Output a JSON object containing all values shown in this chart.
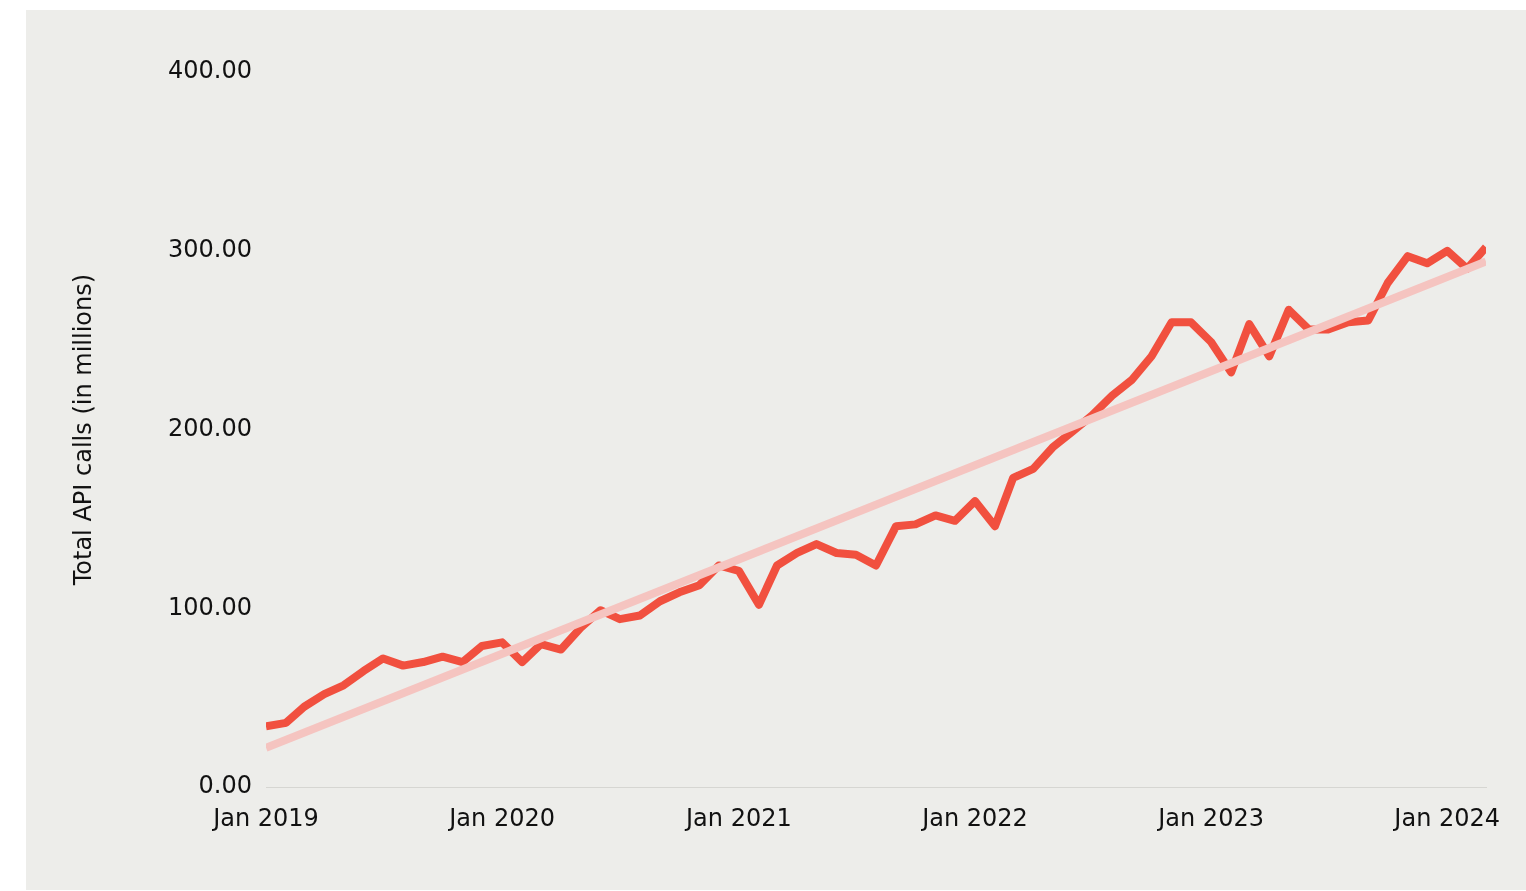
{
  "chart_data": {
    "type": "line",
    "ylabel": "Total API calls (in millions)",
    "x": [
      "2019-01",
      "2019-02",
      "2019-03",
      "2019-04",
      "2019-05",
      "2019-06",
      "2019-07",
      "2019-08",
      "2019-09",
      "2019-10",
      "2019-11",
      "2019-12",
      "2020-01",
      "2020-02",
      "2020-03",
      "2020-04",
      "2020-05",
      "2020-06",
      "2020-07",
      "2020-08",
      "2020-09",
      "2020-10",
      "2020-11",
      "2020-12",
      "2021-01",
      "2021-02",
      "2021-03",
      "2021-04",
      "2021-05",
      "2021-06",
      "2021-07",
      "2021-08",
      "2021-09",
      "2021-10",
      "2021-11",
      "2021-12",
      "2022-01",
      "2022-02",
      "2022-03",
      "2022-04",
      "2022-05",
      "2022-06",
      "2022-07",
      "2022-08",
      "2022-09",
      "2022-10",
      "2022-11",
      "2022-12",
      "2023-01",
      "2023-02",
      "2023-03",
      "2023-04",
      "2023-05",
      "2023-06",
      "2023-07",
      "2023-08",
      "2023-09",
      "2023-10",
      "2023-11",
      "2023-12",
      "2024-01",
      "2024-02",
      "2024-03"
    ],
    "series": [
      {
        "color": "#f1503f",
        "values": [
          34,
          36,
          45,
          52,
          57,
          65,
          72,
          68,
          70,
          73,
          70,
          79,
          81,
          70,
          80,
          77,
          89,
          99,
          94,
          96,
          104,
          109,
          113,
          124,
          121,
          102,
          124,
          131,
          136,
          131,
          130,
          124,
          146,
          147,
          152,
          149,
          160,
          146,
          173,
          178,
          190,
          199,
          208,
          219,
          228,
          241,
          260,
          260,
          249,
          232,
          259,
          241,
          267,
          256,
          256,
          260,
          261,
          282,
          297,
          293,
          300,
          290,
          302
        ]
      },
      {
        "type": "line",
        "color": "#f5c4c0",
        "x": [
          "2019-01",
          "2024-03"
        ],
        "values": [
          22,
          294
        ]
      }
    ],
    "xticks": [
      {
        "value": "2019-01",
        "label": "Jan 2019"
      },
      {
        "value": "2020-01",
        "label": "Jan 2020"
      },
      {
        "value": "2021-01",
        "label": "Jan 2021"
      },
      {
        "value": "2022-01",
        "label": "Jan 2022"
      },
      {
        "value": "2023-01",
        "label": "Jan 2023"
      },
      {
        "value": "2024-01",
        "label": "Jan 2024"
      }
    ],
    "xlim": [
      "2019-01",
      "2024-03"
    ],
    "ylim": [
      0,
      400
    ],
    "yticks": [
      {
        "value": 0,
        "label": "0.00"
      },
      {
        "value": 100,
        "label": "100.00"
      },
      {
        "value": 200,
        "label": "200.00"
      },
      {
        "value": 300,
        "label": "300.00"
      },
      {
        "value": 400,
        "label": "400.00"
      }
    ],
    "grid": false,
    "legend": false
  }
}
